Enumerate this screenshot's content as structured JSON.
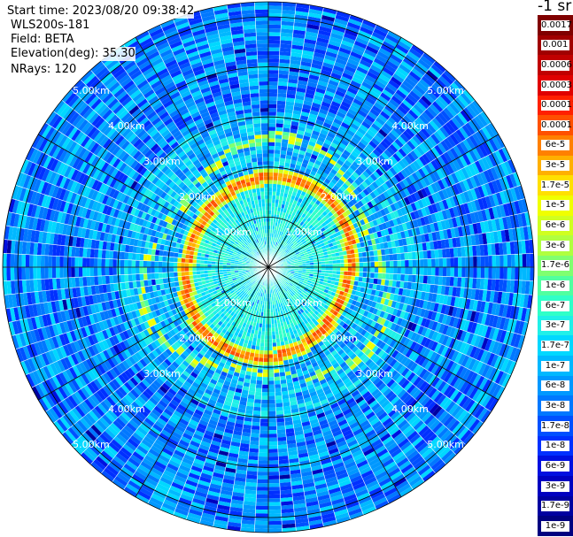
{
  "info": {
    "start_time": "Start time: 2023/08/20 09:38:42",
    "instrument": "WLS200s-181",
    "field": "Field: BETA",
    "elevation": "Elevation(deg): 35.30",
    "nrays": "NRays: 120"
  },
  "colorbar": {
    "unit_label": "-1 sr",
    "entries": [
      {
        "label": "0.0017",
        "color": "#800000"
      },
      {
        "label": "0.001",
        "color": "#a00000"
      },
      {
        "label": "0.0006",
        "color": "#c00000"
      },
      {
        "label": "0.0003",
        "color": "#e00000"
      },
      {
        "label": "0.00017",
        "color": "#ff2000"
      },
      {
        "label": "0.0001",
        "color": "#ff5000"
      },
      {
        "label": "6e-5",
        "color": "#ff8000"
      },
      {
        "label": "3e-5",
        "color": "#ffb000"
      },
      {
        "label": "1.7e-5",
        "color": "#ffe000"
      },
      {
        "label": "1e-5",
        "color": "#f0ff00"
      },
      {
        "label": "6e-6",
        "color": "#d0ff20"
      },
      {
        "label": "3e-6",
        "color": "#b0ff40"
      },
      {
        "label": "1.7e-6",
        "color": "#80ff70"
      },
      {
        "label": "1e-6",
        "color": "#50ffa0"
      },
      {
        "label": "6e-7",
        "color": "#30ffc8"
      },
      {
        "label": "3e-7",
        "color": "#20f0e8"
      },
      {
        "label": "1.7e-7",
        "color": "#00d8ff"
      },
      {
        "label": "1e-7",
        "color": "#00b8ff"
      },
      {
        "label": "6e-8",
        "color": "#0098ff"
      },
      {
        "label": "3e-8",
        "color": "#0078ff"
      },
      {
        "label": "1.7e-8",
        "color": "#0050ff"
      },
      {
        "label": "1e-8",
        "color": "#0030ff"
      },
      {
        "label": "6e-9",
        "color": "#0010e0"
      },
      {
        "label": "3e-9",
        "color": "#0000c0"
      },
      {
        "label": "1.7e-9",
        "color": "#0000a0"
      },
      {
        "label": "1e-9",
        "color": "#000080"
      }
    ]
  },
  "chart_data": {
    "type": "heatmap",
    "projection": "polar (PPI scan)",
    "rays": 120,
    "ring_labels": [
      "1.00km",
      "2.00km",
      "3.00km",
      "4.00km",
      "5.00km"
    ],
    "rings_km": [
      1,
      2,
      3,
      4,
      5
    ],
    "max_range_km": 5.3,
    "features": [
      {
        "description": "high backscatter ring (aerosol layer)",
        "range_km": 1.7,
        "level": "1e-4 to 3e-5"
      },
      {
        "description": "moderate backscatter band",
        "range_km": 2.3,
        "level": "1e-5 to 3e-6"
      },
      {
        "description": "background far field",
        "range_km": "3-5.3",
        "level": "1e-7 to 1e-8"
      }
    ]
  }
}
